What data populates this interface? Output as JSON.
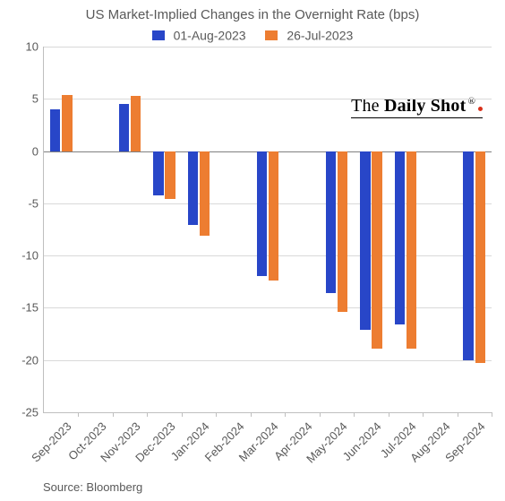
{
  "chart": {
    "type": "bar",
    "title": "US Market-Implied Changes in the Overnight Rate (bps)",
    "title_fontsize": 15,
    "background_color": "#ffffff",
    "grid_color": "#d9d9d9",
    "axis_color": "#bfbfbf",
    "zero_line_color": "#808080",
    "text_color": "#595959",
    "label_fontsize": 13,
    "ylim": [
      -25,
      10
    ],
    "ytick_step": 5,
    "yticks": [
      10,
      5,
      0,
      -5,
      -10,
      -15,
      -20,
      -25
    ],
    "categories": [
      "Sep-2023",
      "Oct-2023",
      "Nov-2023",
      "Dec-2023",
      "Jan-2024",
      "Feb-2024",
      "Mar-2024",
      "Apr-2024",
      "May-2024",
      "Jun-2024",
      "Jul-2024",
      "Aug-2024",
      "Sep-2024"
    ],
    "bar_width": 0.3,
    "bar_gap": 0.04,
    "series": [
      {
        "name": "01-Aug-2023",
        "color": "#2846c8",
        "values": [
          4.0,
          null,
          4.5,
          -4.2,
          -7.1,
          null,
          -12.0,
          null,
          -13.6,
          -17.1,
          -16.6,
          null,
          -20.0
        ]
      },
      {
        "name": "26-Jul-2023",
        "color": "#ed7d31",
        "values": [
          5.4,
          null,
          5.3,
          -4.6,
          -8.1,
          null,
          -12.4,
          null,
          -15.4,
          -18.9,
          -18.9,
          null,
          -20.3
        ]
      }
    ],
    "legend": {
      "position": "top"
    },
    "watermark": {
      "text_prefix": "The",
      "text_bold": "Daily Shot",
      "registered": "®"
    },
    "source": "Source: Bloomberg",
    "xtick_rotation_deg": -45
  }
}
